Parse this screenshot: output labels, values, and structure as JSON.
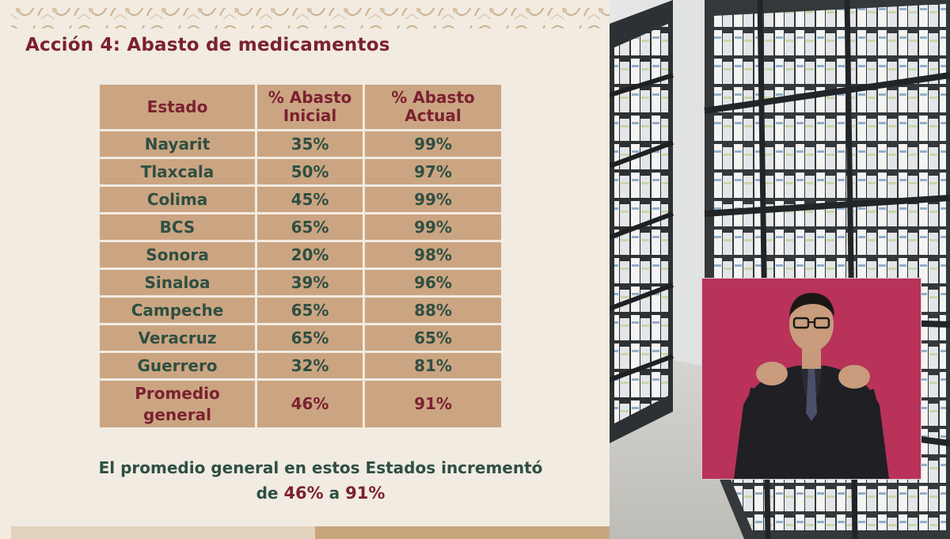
{
  "slide": {
    "title": "Acción 4: Abasto de medicamentos",
    "table": {
      "headers": {
        "estado": "Estado",
        "inicial": [
          "% Abasto",
          "Inicial"
        ],
        "actual": [
          "% Abasto",
          "Actual"
        ]
      },
      "rows": [
        {
          "estado": "Nayarit",
          "inicial": "35%",
          "actual": "99%"
        },
        {
          "estado": "Tlaxcala",
          "inicial": "50%",
          "actual": "97%"
        },
        {
          "estado": "Colima",
          "inicial": "45%",
          "actual": "99%"
        },
        {
          "estado": "BCS",
          "inicial": "65%",
          "actual": "99%"
        },
        {
          "estado": "Sonora",
          "inicial": "20%",
          "actual": "98%"
        },
        {
          "estado": "Sinaloa",
          "inicial": "39%",
          "actual": "96%"
        },
        {
          "estado": "Campeche",
          "inicial": "65%",
          "actual": "88%"
        },
        {
          "estado": "Veracruz",
          "inicial": "65%",
          "actual": "65%"
        },
        {
          "estado": "Guerrero",
          "inicial": "32%",
          "actual": "81%"
        }
      ],
      "total": {
        "estado": [
          "Promedio",
          "general"
        ],
        "inicial": "46%",
        "actual": "91%"
      }
    },
    "footer": {
      "line1": "El promedio general en estos Estados incrementó",
      "pre": "de",
      "from": "46%",
      "mid": "a",
      "to": "91%"
    }
  },
  "colors": {
    "maroon": "#7b2131",
    "green": "#2f4f43",
    "cell": "#cba581",
    "background": "#f1ebe1",
    "interpreter_bg": "#b8325a"
  },
  "media": {
    "photo": "pharmacy-shelves-image",
    "inset": "sign-language-interpreter-image"
  }
}
